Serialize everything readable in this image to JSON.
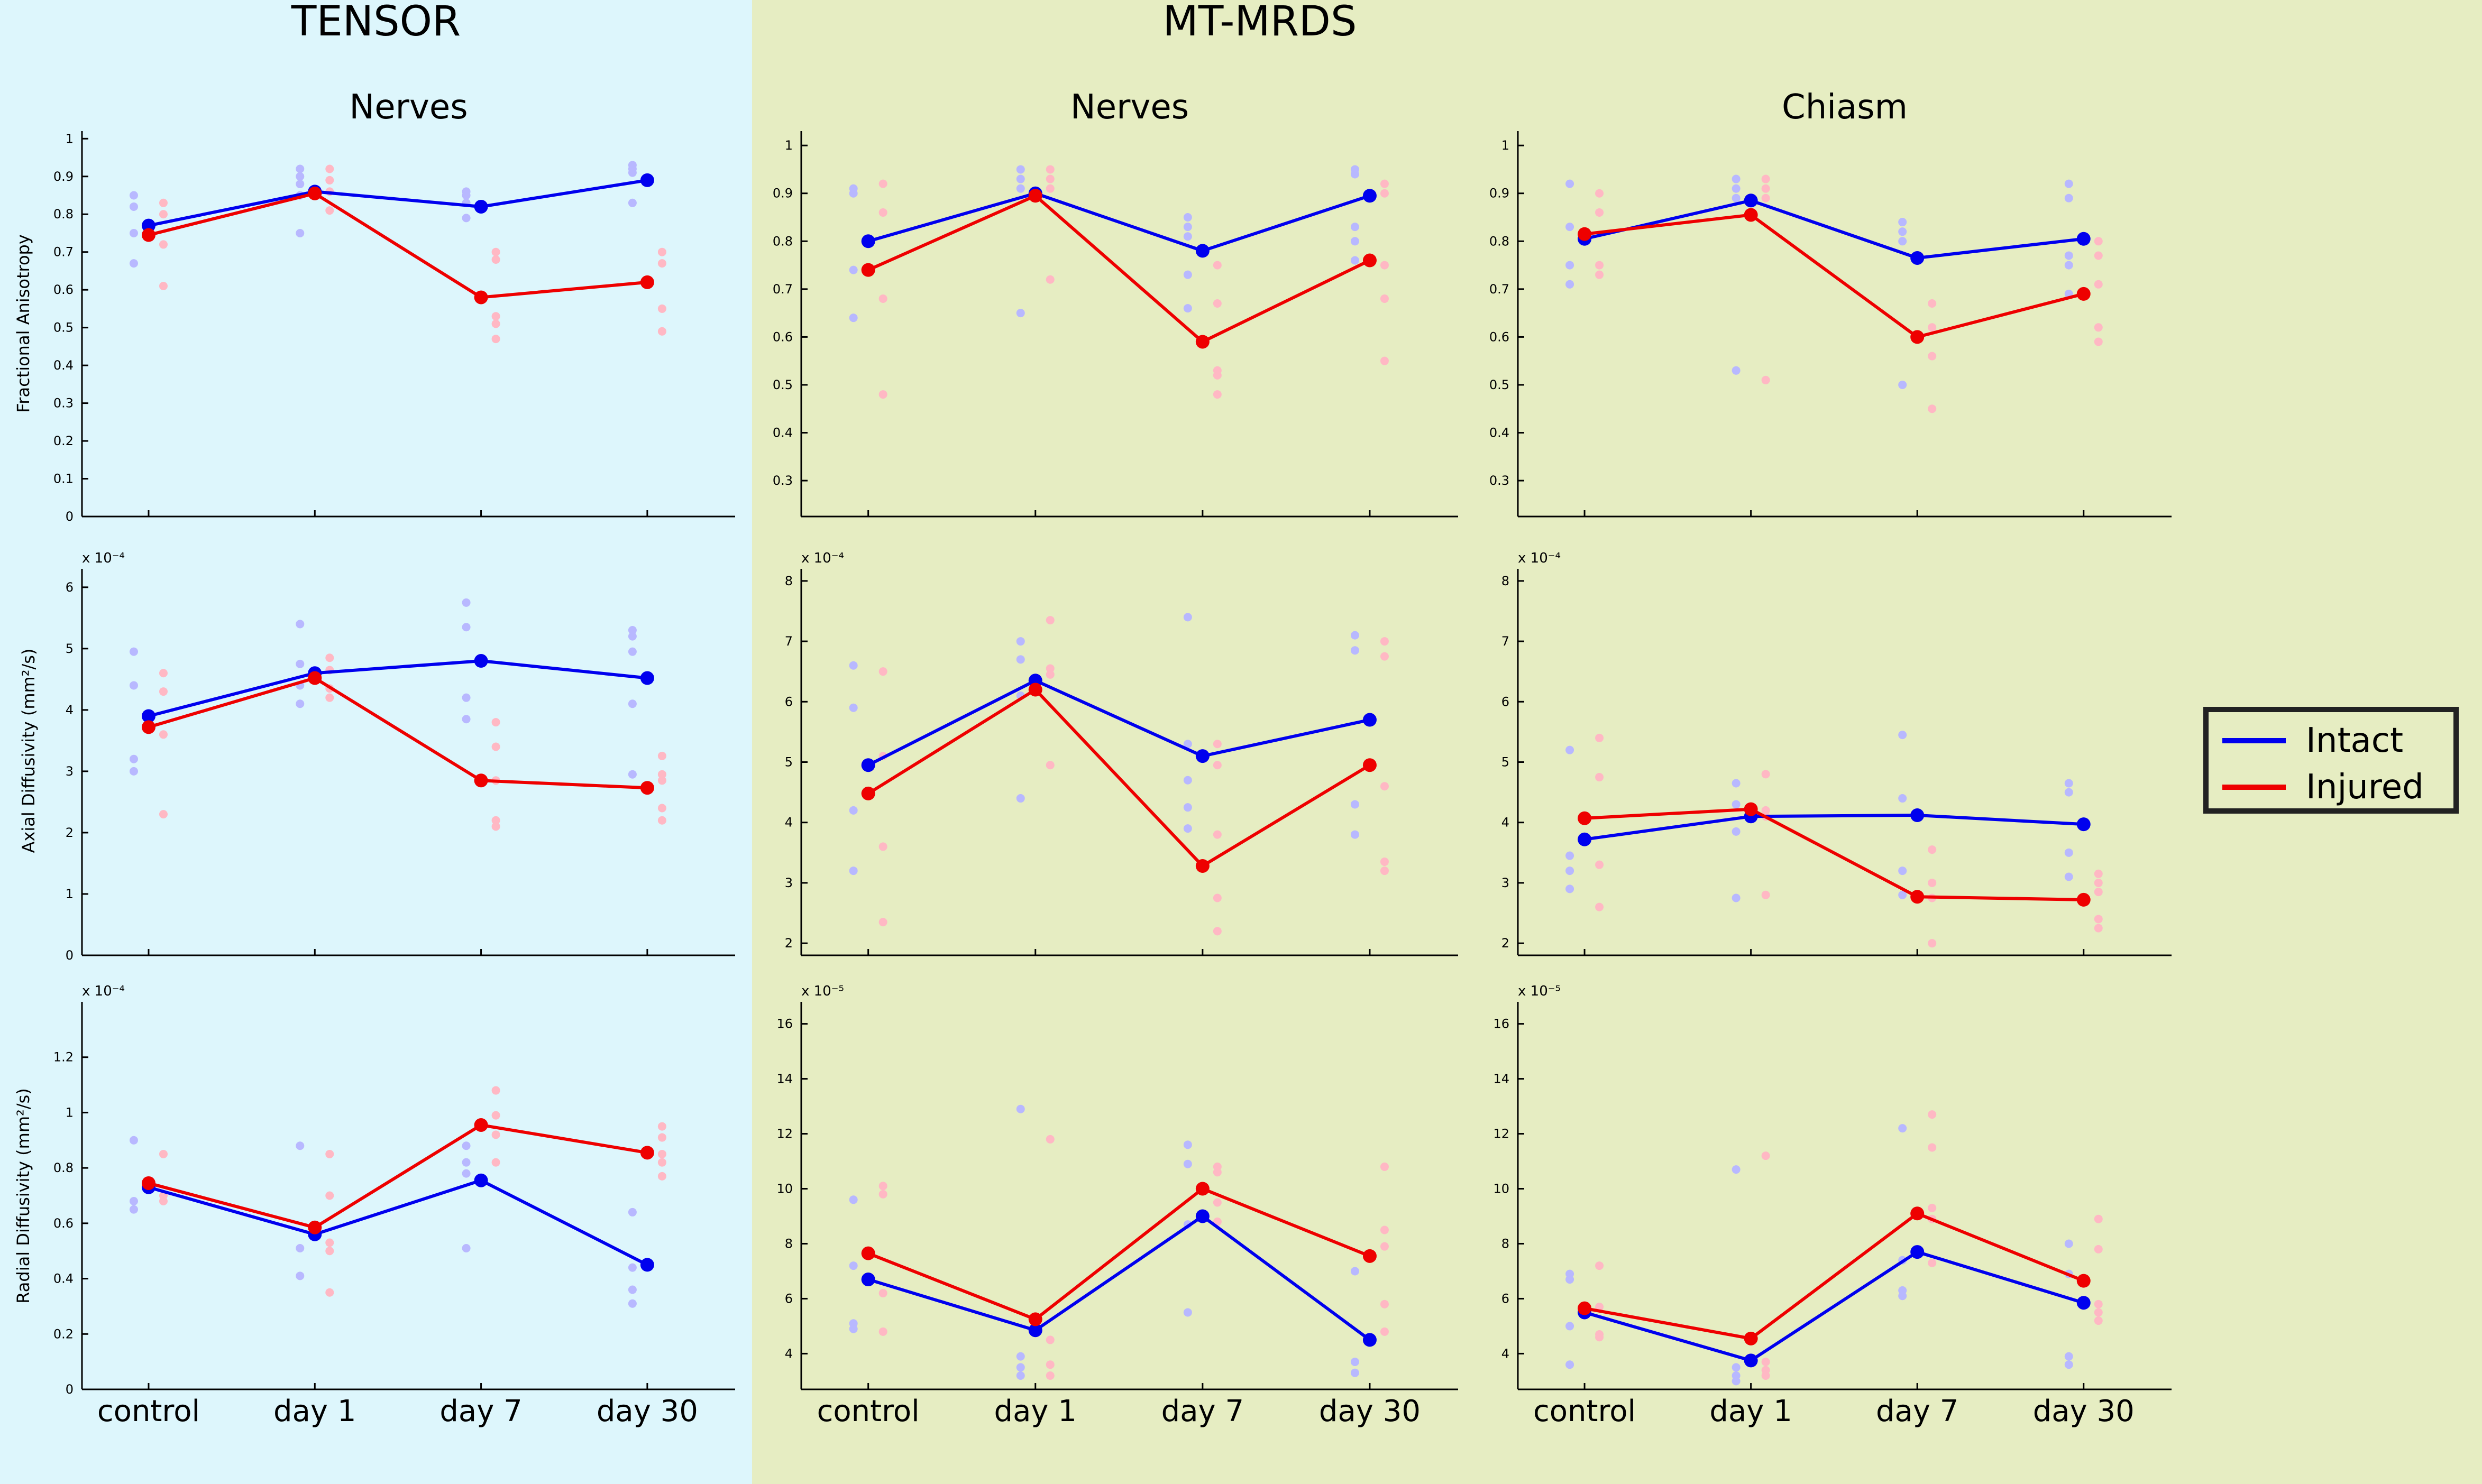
{
  "sections": {
    "tensor": "TENSOR",
    "mtmrds": "MT-MRDS"
  },
  "legend": {
    "intact": "Intact",
    "injured": "Injured",
    "intact_color": "#0000ee",
    "injured_color": "#ee0000"
  },
  "colors": {
    "tensor_bg": "#ddf6fc",
    "mtmrds_bg": "#e6edc2"
  },
  "chart_data": [
    {
      "id": "tensor-fa",
      "type": "line",
      "title": "Nerves",
      "ylabel": "Fractional Anisotropy",
      "exponent": "",
      "categories": [
        "control",
        "day 1",
        "day 7",
        "day 30"
      ],
      "ylim": [
        0,
        1.02
      ],
      "yticks": [
        0,
        0.1,
        0.2,
        0.3,
        0.4,
        0.5,
        0.6,
        0.7,
        0.8,
        0.9,
        1
      ],
      "ytick_labels": [
        "0",
        "0.1",
        "0.2",
        "0.3",
        "0.4",
        "0.5",
        "0.6",
        "0.7",
        "0.8",
        "0.9",
        "1"
      ],
      "show_xlabels": false,
      "series": [
        {
          "name": "Intact",
          "values": [
            0.77,
            0.86,
            0.82,
            0.89
          ]
        },
        {
          "name": "Injured",
          "values": [
            0.745,
            0.855,
            0.58,
            0.62
          ]
        }
      ],
      "points_intact": [
        [
          0.85,
          0.82,
          0.75,
          0.67
        ],
        [
          0.92,
          0.9,
          0.88,
          0.85,
          0.75
        ],
        [
          0.86,
          0.85,
          0.83,
          0.79
        ],
        [
          0.93,
          0.92,
          0.91,
          0.83
        ]
      ],
      "points_injured": [
        [
          0.83,
          0.8,
          0.72,
          0.61
        ],
        [
          0.92,
          0.89,
          0.86,
          0.81
        ],
        [
          0.7,
          0.68,
          0.53,
          0.51,
          0.47
        ],
        [
          0.7,
          0.67,
          0.55,
          0.49
        ]
      ]
    },
    {
      "id": "mt-nerves-fa",
      "type": "line",
      "title": "Nerves",
      "ylabel": "",
      "exponent": "",
      "categories": [
        "control",
        "day 1",
        "day 7",
        "day 30"
      ],
      "ylim": [
        0.225,
        1.03
      ],
      "yticks": [
        0.3,
        0.4,
        0.5,
        0.6,
        0.7,
        0.8,
        0.9,
        1
      ],
      "ytick_labels": [
        "0.3",
        "0.4",
        "0.5",
        "0.6",
        "0.7",
        "0.8",
        "0.9",
        "1"
      ],
      "show_xlabels": false,
      "series": [
        {
          "name": "Intact",
          "values": [
            0.8,
            0.9,
            0.78,
            0.895
          ]
        },
        {
          "name": "Injured",
          "values": [
            0.74,
            0.895,
            0.59,
            0.76
          ]
        }
      ],
      "points_intact": [
        [
          0.91,
          0.9,
          0.74,
          0.64
        ],
        [
          0.95,
          0.93,
          0.91,
          0.65
        ],
        [
          0.85,
          0.83,
          0.81,
          0.73,
          0.66
        ],
        [
          0.95,
          0.94,
          0.83,
          0.8,
          0.76
        ]
      ],
      "points_injured": [
        [
          0.92,
          0.86,
          0.68,
          0.48
        ],
        [
          0.95,
          0.93,
          0.91,
          0.72
        ],
        [
          0.75,
          0.67,
          0.53,
          0.52,
          0.48
        ],
        [
          0.92,
          0.9,
          0.75,
          0.68,
          0.55
        ]
      ]
    },
    {
      "id": "mt-chiasm-fa",
      "type": "line",
      "title": "Chiasm",
      "ylabel": "",
      "exponent": "",
      "categories": [
        "control",
        "day 1",
        "day 7",
        "day 30"
      ],
      "ylim": [
        0.225,
        1.03
      ],
      "yticks": [
        0.3,
        0.4,
        0.5,
        0.6,
        0.7,
        0.8,
        0.9,
        1
      ],
      "ytick_labels": [
        "0.3",
        "0.4",
        "0.5",
        "0.6",
        "0.7",
        "0.8",
        "0.9",
        "1"
      ],
      "show_xlabels": false,
      "series": [
        {
          "name": "Intact",
          "values": [
            0.805,
            0.885,
            0.765,
            0.805
          ]
        },
        {
          "name": "Injured",
          "values": [
            0.815,
            0.855,
            0.6,
            0.69
          ]
        }
      ],
      "points_intact": [
        [
          0.92,
          0.83,
          0.75,
          0.71
        ],
        [
          0.93,
          0.91,
          0.89,
          0.53
        ],
        [
          0.84,
          0.82,
          0.8,
          0.5
        ],
        [
          0.92,
          0.89,
          0.77,
          0.75,
          0.69
        ]
      ],
      "points_injured": [
        [
          0.9,
          0.86,
          0.75,
          0.73
        ],
        [
          0.93,
          0.91,
          0.89,
          0.51
        ],
        [
          0.67,
          0.62,
          0.56,
          0.45
        ],
        [
          0.8,
          0.77,
          0.71,
          0.62,
          0.59
        ]
      ]
    },
    {
      "id": "tensor-ad",
      "type": "line",
      "title": "",
      "ylabel": "Axial Diffusivity (mm²/s)",
      "exponent": "x 10⁻⁴",
      "categories": [
        "control",
        "day 1",
        "day 7",
        "day 30"
      ],
      "ylim": [
        0,
        6.3
      ],
      "yticks": [
        0,
        1,
        2,
        3,
        4,
        5,
        6
      ],
      "ytick_labels": [
        "0",
        "1",
        "2",
        "3",
        "4",
        "5",
        "6"
      ],
      "show_xlabels": false,
      "series": [
        {
          "name": "Intact",
          "values": [
            3.9,
            4.6,
            4.8,
            4.52
          ]
        },
        {
          "name": "Injured",
          "values": [
            3.72,
            4.52,
            2.85,
            2.73
          ]
        }
      ],
      "points_intact": [
        [
          4.95,
          4.4,
          3.2,
          3.0
        ],
        [
          5.4,
          4.75,
          4.4,
          4.1
        ],
        [
          5.75,
          5.35,
          4.2,
          3.85
        ],
        [
          5.3,
          5.2,
          4.95,
          4.1,
          2.95
        ]
      ],
      "points_injured": [
        [
          4.6,
          4.3,
          3.6,
          2.3
        ],
        [
          4.85,
          4.65,
          4.35,
          4.2
        ],
        [
          3.8,
          3.4,
          2.85,
          2.2,
          2.1
        ],
        [
          3.25,
          2.95,
          2.85,
          2.4,
          2.2
        ]
      ]
    },
    {
      "id": "mt-nerves-ad",
      "type": "line",
      "title": "",
      "ylabel": "",
      "exponent": "x 10⁻⁴",
      "categories": [
        "control",
        "day 1",
        "day 7",
        "day 30"
      ],
      "ylim": [
        1.8,
        8.2
      ],
      "yticks": [
        2,
        3,
        4,
        5,
        6,
        7,
        8
      ],
      "ytick_labels": [
        "2",
        "3",
        "4",
        "5",
        "6",
        "7",
        "8"
      ],
      "show_xlabels": false,
      "series": [
        {
          "name": "Intact",
          "values": [
            4.95,
            6.35,
            5.1,
            5.7
          ]
        },
        {
          "name": "Injured",
          "values": [
            4.48,
            6.2,
            3.28,
            4.95
          ]
        }
      ],
      "points_intact": [
        [
          6.6,
          5.9,
          4.2,
          3.2
        ],
        [
          7.0,
          6.7,
          6.1,
          4.4
        ],
        [
          7.4,
          5.3,
          4.7,
          4.25,
          3.9
        ],
        [
          7.1,
          6.85,
          4.3,
          3.8
        ]
      ],
      "points_injured": [
        [
          6.5,
          5.1,
          3.6,
          2.35
        ],
        [
          7.35,
          6.55,
          6.45,
          4.95
        ],
        [
          5.3,
          4.95,
          3.8,
          2.75,
          2.2
        ],
        [
          7.0,
          6.75,
          4.6,
          3.35,
          3.2
        ]
      ]
    },
    {
      "id": "mt-chiasm-ad",
      "type": "line",
      "title": "",
      "ylabel": "",
      "exponent": "x 10⁻⁴",
      "categories": [
        "control",
        "day 1",
        "day 7",
        "day 30"
      ],
      "ylim": [
        1.8,
        8.2
      ],
      "yticks": [
        2,
        3,
        4,
        5,
        6,
        7,
        8
      ],
      "ytick_labels": [
        "2",
        "3",
        "4",
        "5",
        "6",
        "7",
        "8"
      ],
      "show_xlabels": false,
      "series": [
        {
          "name": "Intact",
          "values": [
            3.72,
            4.1,
            4.12,
            3.97
          ]
        },
        {
          "name": "Injured",
          "values": [
            4.07,
            4.22,
            2.77,
            2.72
          ]
        }
      ],
      "points_intact": [
        [
          5.2,
          3.45,
          3.2,
          2.9
        ],
        [
          4.65,
          4.3,
          3.85,
          2.75
        ],
        [
          5.45,
          4.4,
          3.2,
          2.8
        ],
        [
          4.65,
          4.5,
          3.5,
          3.1
        ]
      ],
      "points_injured": [
        [
          5.4,
          4.75,
          3.3,
          2.6
        ],
        [
          4.8,
          4.2,
          4.1,
          2.8
        ],
        [
          3.55,
          3.0,
          2.75,
          2.0
        ],
        [
          3.15,
          3.0,
          2.85,
          2.4,
          2.25
        ]
      ]
    },
    {
      "id": "tensor-rd",
      "type": "line",
      "title": "",
      "ylabel": "Radial Diffusivity (mm²/s)",
      "exponent": "x 10⁻⁴",
      "categories": [
        "control",
        "day 1",
        "day 7",
        "day 30"
      ],
      "ylim": [
        0,
        1.4
      ],
      "yticks": [
        0,
        0.2,
        0.4,
        0.6,
        0.8,
        1,
        1.2
      ],
      "ytick_labels": [
        "0",
        "0.2",
        "0.4",
        "0.6",
        "0.8",
        "1",
        "1.2"
      ],
      "show_xlabels": true,
      "series": [
        {
          "name": "Intact",
          "values": [
            0.73,
            0.56,
            0.755,
            0.45
          ]
        },
        {
          "name": "Injured",
          "values": [
            0.745,
            0.585,
            0.955,
            0.855
          ]
        }
      ],
      "points_intact": [
        [
          0.9,
          0.68,
          0.65
        ],
        [
          0.88,
          0.51,
          0.41
        ],
        [
          0.88,
          0.82,
          0.78,
          0.51
        ],
        [
          0.64,
          0.44,
          0.36,
          0.31
        ]
      ],
      "points_injured": [
        [
          0.85,
          0.7,
          0.68
        ],
        [
          0.85,
          0.7,
          0.53,
          0.5,
          0.35
        ],
        [
          1.08,
          0.99,
          0.92,
          0.82
        ],
        [
          0.95,
          0.91,
          0.85,
          0.82,
          0.77
        ]
      ]
    },
    {
      "id": "mt-nerves-rd",
      "type": "line",
      "title": "",
      "ylabel": "",
      "exponent": "x 10⁻⁵",
      "categories": [
        "control",
        "day 1",
        "day 7",
        "day 30"
      ],
      "ylim": [
        2.7,
        16.8
      ],
      "yticks": [
        4,
        6,
        8,
        10,
        12,
        14,
        16
      ],
      "ytick_labels": [
        "4",
        "6",
        "8",
        "10",
        "12",
        "14",
        "16"
      ],
      "show_xlabels": true,
      "series": [
        {
          "name": "Intact",
          "values": [
            6.7,
            4.85,
            9.0,
            4.5
          ]
        },
        {
          "name": "Injured",
          "values": [
            7.65,
            5.25,
            10.0,
            7.55
          ]
        }
      ],
      "points_intact": [
        [
          9.6,
          7.2,
          5.1,
          4.9
        ],
        [
          12.9,
          3.9,
          3.5,
          3.2
        ],
        [
          11.6,
          10.9,
          8.7,
          5.5
        ],
        [
          7.0,
          3.7,
          3.3
        ]
      ],
      "points_injured": [
        [
          10.1,
          9.8,
          6.2,
          4.8
        ],
        [
          11.8,
          4.5,
          3.6,
          3.2
        ],
        [
          10.8,
          10.6,
          9.5,
          8.8
        ],
        [
          10.8,
          8.5,
          7.9,
          5.8,
          4.8
        ]
      ]
    },
    {
      "id": "mt-chiasm-rd",
      "type": "line",
      "title": "",
      "ylabel": "",
      "exponent": "x 10⁻⁵",
      "categories": [
        "control",
        "day 1",
        "day 7",
        "day 30"
      ],
      "ylim": [
        2.7,
        16.8
      ],
      "yticks": [
        4,
        6,
        8,
        10,
        12,
        14,
        16
      ],
      "ytick_labels": [
        "4",
        "6",
        "8",
        "10",
        "12",
        "14",
        "16"
      ],
      "show_xlabels": true,
      "series": [
        {
          "name": "Intact",
          "values": [
            5.5,
            3.75,
            7.7,
            5.85
          ]
        },
        {
          "name": "Injured",
          "values": [
            5.65,
            4.55,
            9.1,
            6.65
          ]
        }
      ],
      "points_intact": [
        [
          6.9,
          6.7,
          5.0,
          3.6
        ],
        [
          10.7,
          3.5,
          3.2,
          3.0
        ],
        [
          12.2,
          7.4,
          6.3,
          6.1
        ],
        [
          8.0,
          6.9,
          3.9,
          3.6
        ]
      ],
      "points_injured": [
        [
          7.2,
          5.7,
          4.7,
          4.6
        ],
        [
          11.2,
          3.7,
          3.4,
          3.2
        ],
        [
          12.7,
          11.5,
          9.3,
          8.9,
          7.3
        ],
        [
          8.9,
          7.8,
          5.8,
          5.5,
          5.2
        ]
      ]
    }
  ]
}
